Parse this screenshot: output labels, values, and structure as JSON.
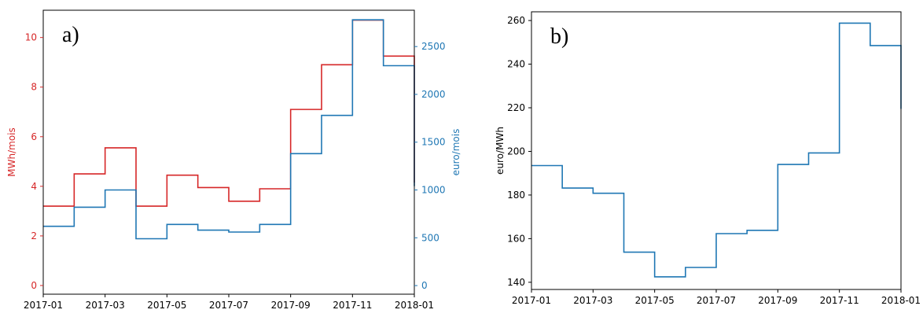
{
  "chart_data": [
    {
      "type": "line",
      "step": true,
      "panel_label": "a)",
      "x": [
        "2017-01",
        "2017-02",
        "2017-03",
        "2017-04",
        "2017-05",
        "2017-06",
        "2017-07",
        "2017-08",
        "2017-09",
        "2017-10",
        "2017-11",
        "2017-12",
        "2018-01"
      ],
      "xticks": [
        "2017-01",
        "2017-03",
        "2017-05",
        "2017-07",
        "2017-09",
        "2017-11",
        "2018-01"
      ],
      "series": [
        {
          "axis": "left",
          "color": "#d62728",
          "values": [
            3.2,
            4.5,
            5.55,
            3.2,
            4.45,
            3.95,
            3.4,
            3.9,
            7.1,
            8.9,
            10.7,
            9.25,
            4.15
          ]
        },
        {
          "axis": "right",
          "color": "#1f77b4",
          "values": [
            620,
            820,
            1000,
            490,
            640,
            580,
            560,
            640,
            1380,
            1780,
            2780,
            2300,
            1040
          ]
        }
      ],
      "ylabel": "MWh/mois",
      "ylabel_color": "#d62728",
      "ylim": [
        -0.35,
        11.1
      ],
      "yticks": [
        0,
        2,
        4,
        6,
        8,
        10
      ],
      "y2label": "euro/mois",
      "y2label_color": "#1f77b4",
      "y2lim": [
        -90,
        2880
      ],
      "y2ticks": [
        0,
        500,
        1000,
        1500,
        2000,
        2500
      ],
      "grid": false
    },
    {
      "type": "line",
      "step": true,
      "panel_label": "b)",
      "x": [
        "2017-01",
        "2017-02",
        "2017-03",
        "2017-04",
        "2017-05",
        "2017-06",
        "2017-07",
        "2017-08",
        "2017-09",
        "2017-10",
        "2017-11",
        "2017-12",
        "2018-01"
      ],
      "xticks": [
        "2017-01",
        "2017-03",
        "2017-05",
        "2017-07",
        "2017-09",
        "2017-11",
        "2018-01"
      ],
      "series": [
        {
          "color": "#1f77b4",
          "values": [
            193.5,
            183.2,
            180.8,
            153.8,
            142.5,
            146.8,
            162.3,
            163.8,
            194,
            199.3,
            258.8,
            248.5,
            219.5
          ]
        }
      ],
      "ylabel": "euro/MWh",
      "ylim": [
        136.7,
        264
      ],
      "yticks": [
        140,
        160,
        180,
        200,
        220,
        240,
        260
      ],
      "grid": false
    }
  ]
}
